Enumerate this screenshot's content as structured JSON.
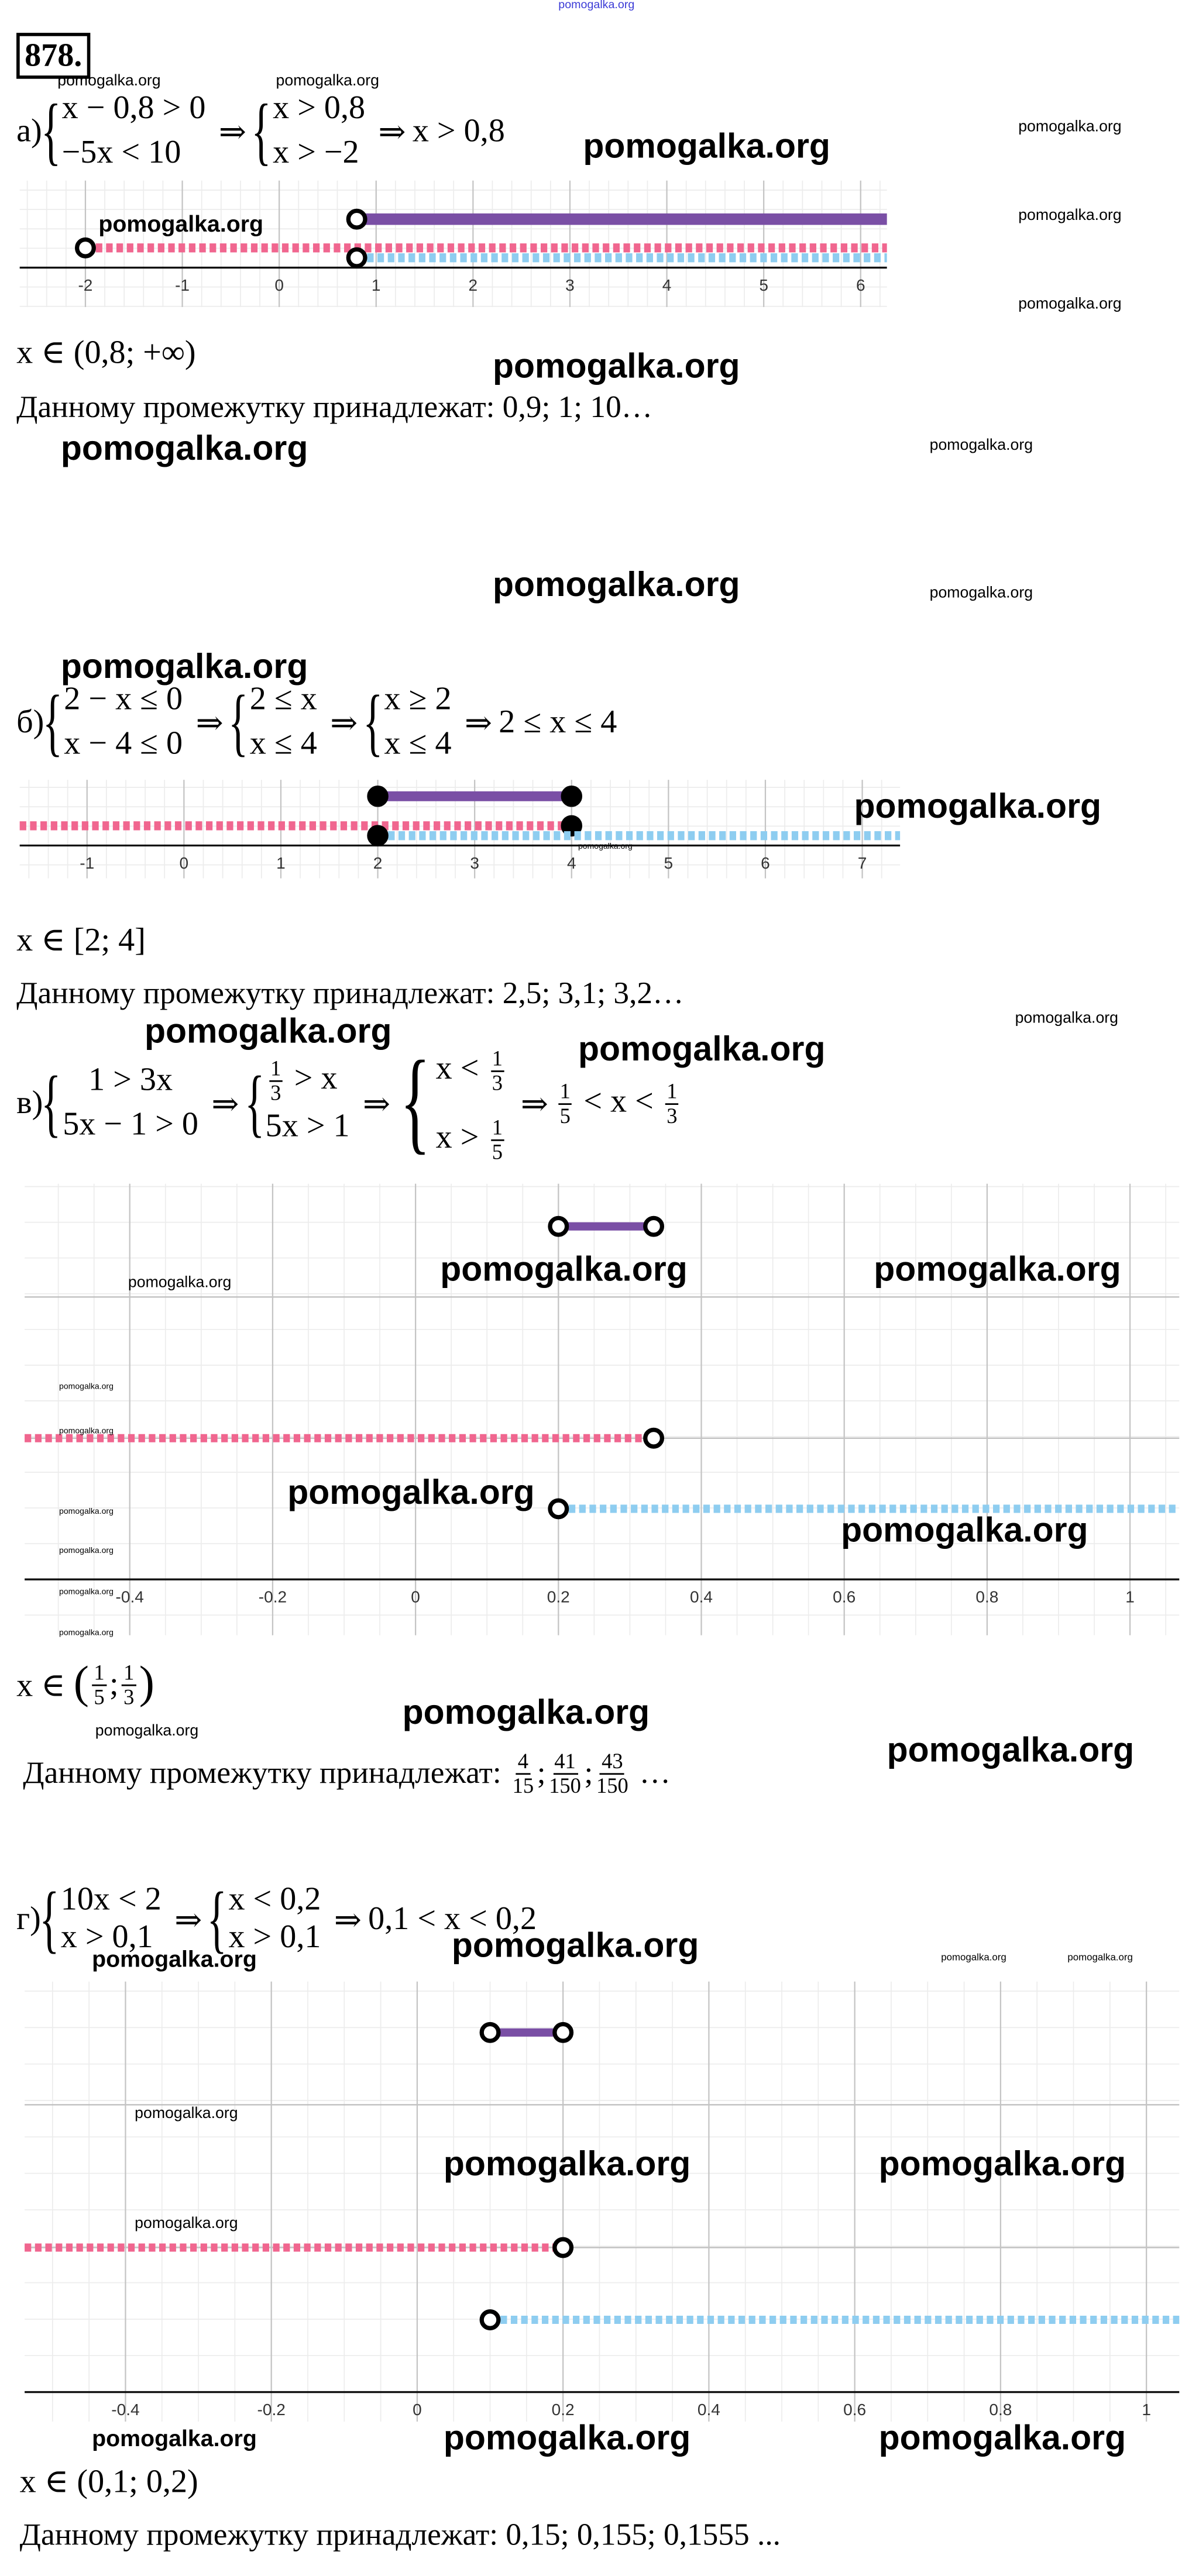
{
  "watermark": {
    "text": "pomogalka.org"
  },
  "problem_number": "878.",
  "parts": {
    "a": {
      "label": "а)",
      "sys1": [
        "x − 0,8 > 0",
        "−5x < 10"
      ],
      "sys2": [
        "x > 0,8",
        "x > −2"
      ],
      "result": "x > 0,8",
      "answer": "x ∈ (0,8; +∞)",
      "belongs": "Данному промежутку принадлежат: 0,9; 1; 10…"
    },
    "b": {
      "label": "б)",
      "sys1": [
        "2 − x ≤ 0",
        "x − 4 ≤ 0"
      ],
      "sys2": [
        "2 ≤ x",
        "x ≤ 4"
      ],
      "sys3": [
        "x ≥ 2",
        "x ≤ 4"
      ],
      "result": "2 ≤ x ≤ 4",
      "answer": "x ∈ [2; 4]",
      "belongs": "Данному промежутку принадлежат: 2,5; 3,1; 3,2…"
    },
    "c": {
      "label": "в)",
      "sys1": [
        "1 > 3x",
        "5x − 1 > 0"
      ],
      "sys2_line1_rest": "> x",
      "sys2_line2": "5x > 1",
      "sys3_line1_prefix": "x <",
      "sys3_line2_prefix": "x >",
      "frac_1_3": {
        "n": "1",
        "d": "3"
      },
      "frac_1_5": {
        "n": "1",
        "d": "5"
      },
      "result_lt": "< x <",
      "answer_prefix": "x ∈",
      "answer_sep": ";",
      "belongs_prefix": "Данному промежутку принадлежат:",
      "belongs_fracs": [
        {
          "n": "4",
          "d": "15"
        },
        {
          "n": "41",
          "d": "150"
        },
        {
          "n": "43",
          "d": "150"
        }
      ],
      "belongs_sep": ";",
      "belongs_suffix": "…"
    },
    "d": {
      "label": "г)",
      "sys1": [
        "10x < 2",
        "x > 0,1"
      ],
      "sys2": [
        "x < 0,2",
        "x > 0,1"
      ],
      "result": "0,1 < x < 0,2",
      "answer": "x ∈ (0,1; 0,2)",
      "belongs": "Данному промежутку принадлежат: 0,15; 0,155; 0,1555 ..."
    }
  },
  "colors": {
    "solution": "#7a4fa5",
    "first": "#f0668f",
    "second": "#8ecdf0"
  },
  "chart_data": [
    {
      "id": "a",
      "type": "line",
      "title": "",
      "ticks": [
        "-2",
        "-1",
        "0",
        "1",
        "2",
        "3",
        "4",
        "5",
        "6"
      ],
      "tick_values": [
        -2,
        -1,
        0,
        1,
        2,
        3,
        4,
        5,
        6
      ],
      "series": [
        {
          "name": "solution",
          "from": 0.8,
          "to": "inf",
          "from_closed": false,
          "to_closed": false,
          "style": "solid"
        },
        {
          "name": "first",
          "from": -2,
          "to": "inf",
          "from_closed": false,
          "to_closed": false,
          "style": "dashed"
        },
        {
          "name": "second",
          "from": 0.8,
          "to": "inf",
          "from_closed": false,
          "to_closed": false,
          "style": "dashed"
        }
      ]
    },
    {
      "id": "b",
      "type": "line",
      "title": "",
      "ticks": [
        "-1",
        "0",
        "1",
        "2",
        "3",
        "4",
        "5",
        "6",
        "7"
      ],
      "tick_values": [
        -1,
        0,
        1,
        2,
        3,
        4,
        5,
        6,
        7
      ],
      "series": [
        {
          "name": "solution",
          "from": 2,
          "to": 4,
          "from_closed": true,
          "to_closed": true,
          "style": "solid"
        },
        {
          "name": "first",
          "from": "-inf",
          "to": 4,
          "from_closed": false,
          "to_closed": true,
          "style": "dashed"
        },
        {
          "name": "second",
          "from": 2,
          "to": "inf",
          "from_closed": true,
          "to_closed": false,
          "style": "dashed"
        }
      ]
    },
    {
      "id": "c",
      "type": "line",
      "title": "",
      "ticks": [
        "-0.4",
        "-0.2",
        "0",
        "0.2",
        "0.4",
        "0.6",
        "0.8",
        "1"
      ],
      "tick_values": [
        -0.4,
        -0.2,
        0,
        0.2,
        0.4,
        0.6,
        0.8,
        1
      ],
      "series": [
        {
          "name": "solution",
          "from": 0.2,
          "to": 0.3333,
          "from_closed": false,
          "to_closed": false,
          "style": "solid"
        },
        {
          "name": "first",
          "from": "-inf",
          "to": 0.3333,
          "from_closed": false,
          "to_closed": false,
          "style": "dashed"
        },
        {
          "name": "second",
          "from": 0.2,
          "to": "inf",
          "from_closed": false,
          "to_closed": false,
          "style": "dashed"
        }
      ]
    },
    {
      "id": "d",
      "type": "line",
      "title": "",
      "ticks": [
        "-0.4",
        "-0.2",
        "0",
        "0.2",
        "0.4",
        "0.6",
        "0.8",
        "1"
      ],
      "tick_values": [
        -0.4,
        -0.2,
        0,
        0.2,
        0.4,
        0.6,
        0.8,
        1
      ],
      "series": [
        {
          "name": "solution",
          "from": 0.1,
          "to": 0.2,
          "from_closed": false,
          "to_closed": false,
          "style": "solid"
        },
        {
          "name": "first",
          "from": "-inf",
          "to": 0.2,
          "from_closed": false,
          "to_closed": false,
          "style": "dashed"
        },
        {
          "name": "second",
          "from": 0.1,
          "to": "inf",
          "from_closed": false,
          "to_closed": false,
          "style": "dashed"
        }
      ]
    }
  ]
}
